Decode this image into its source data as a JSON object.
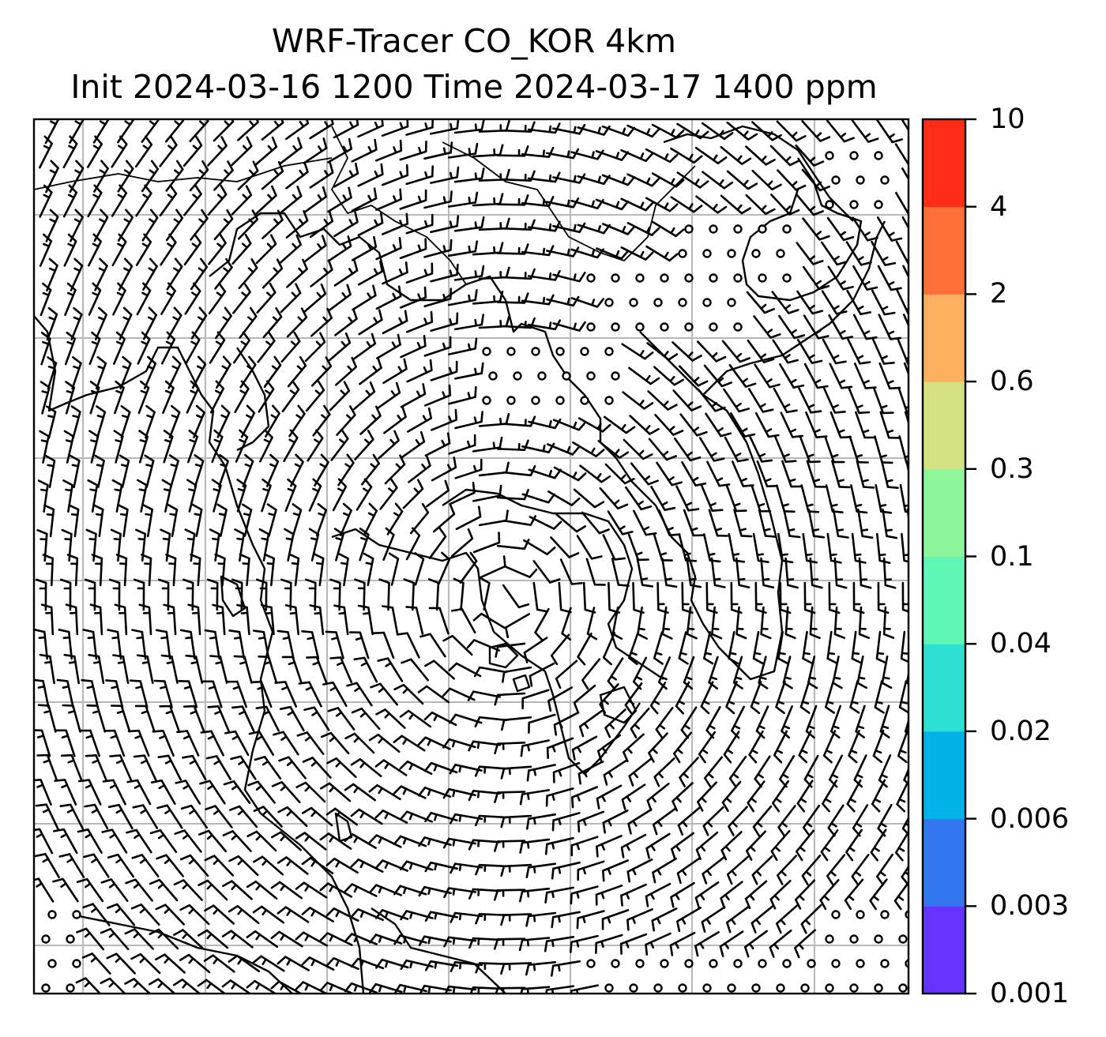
{
  "title": {
    "line1": "WRF-Tracer CO_KOR 4km",
    "line2": "Init 2024-03-16 1200 Time 2024-03-17 1400 ppm"
  },
  "map": {
    "field": "CO tracer concentration with wind barbs",
    "grid": "on",
    "wind_barbs": "cyclonic circulation centred over the Yellow Sea and Korean Peninsula",
    "calm_markers": "circles over northeast China, the Korean/Manchurian interior and the southeast corner"
  },
  "colorbar": {
    "levels": [
      "0.001",
      "0.003",
      "0.006",
      "0.02",
      "0.04",
      "0.1",
      "0.3",
      "0.6",
      "2",
      "4",
      "10"
    ],
    "colors": [
      "#6633ff",
      "#3377ee",
      "#00b2e8",
      "#2ee0d2",
      "#5ff6b6",
      "#8df59a",
      "#d5e282",
      "#fdb060",
      "#ff7038",
      "#ff2d17"
    ]
  }
}
